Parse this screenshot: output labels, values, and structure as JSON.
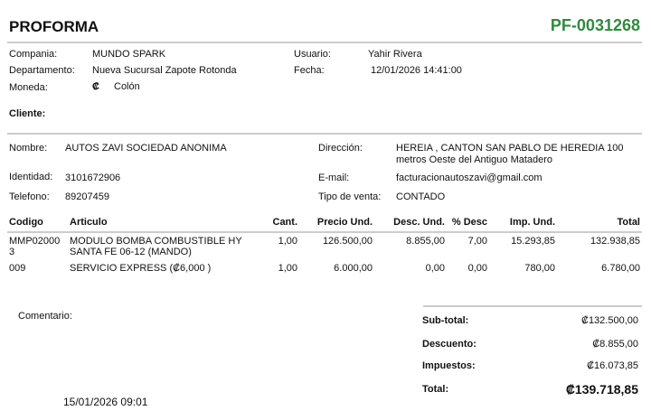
{
  "header": {
    "title": "PROFORMA",
    "number": "PF-0031268",
    "number_color": "#2e8b3e"
  },
  "info": {
    "compania_label": "Compania:",
    "compania": "MUNDO SPARK",
    "departamento_label": "Departamento:",
    "departamento": "Nueva Sucursal Zapote Rotonda",
    "moneda_label": "Moneda:",
    "moneda_symbol": "₡",
    "moneda": "Colón",
    "usuario_label": "Usuario:",
    "usuario": "Yahir Rivera",
    "fecha_label": "Fecha:",
    "fecha": "12/01/2026 14:41:00"
  },
  "cliente": {
    "section_label": "Cliente:",
    "nombre_label": "Nombre:",
    "nombre": "AUTOS ZAVI SOCIEDAD ANONIMA",
    "identidad_label": "Identidad:",
    "identidad": "3101672906",
    "telefono_label": "Telefono:",
    "telefono": "89207459",
    "direccion_label": "Dirección:",
    "direccion_1": "HEREIA , CANTON SAN PABLO DE HEREDIA 100",
    "direccion_2": "metros Oeste del Antiguo Matadero",
    "email_label": "E-mail:",
    "email": "facturacionautoszavi@gmail.com",
    "tipo_venta_label": "Tipo de venta:",
    "tipo_venta": "CONTADO"
  },
  "table": {
    "headers": [
      "Codigo",
      "Articulo",
      "Cant.",
      "Precio Und.",
      "Desc. Und.",
      "% Desc",
      "Imp. Und.",
      "Total"
    ],
    "rows": [
      {
        "codigo_1": "MMP02000",
        "codigo_2": "3",
        "articulo_1": "MODULO BOMBA COMBUSTIBLE HY",
        "articulo_2": "SANTA FE 06-12 (MANDO)",
        "cant": "1,00",
        "precio": "126.500,00",
        "desc": "8.855,00",
        "pdesc": "7,00",
        "imp": "15.293,85",
        "total": "132.938,85"
      },
      {
        "codigo_1": "009",
        "codigo_2": "",
        "articulo_1": "SERVICIO EXPRESS (₡6,000 )",
        "articulo_2": "",
        "cant": "1,00",
        "precio": "6.000,00",
        "desc": "0,00",
        "pdesc": "0,00",
        "imp": "780,00",
        "total": "6.780,00"
      }
    ]
  },
  "comentario_label": "Comentario:",
  "footer_date": "15/01/2026 09:01",
  "totals": {
    "subtotal_label": "Sub-total:",
    "subtotal": "₡132.500,00",
    "descuento_label": "Descuento:",
    "descuento": "₡8.855,00",
    "impuestos_label": "Impuestos:",
    "impuestos": "₡16.073,85",
    "total_label": "Total:",
    "total": "₡139.718,85"
  }
}
